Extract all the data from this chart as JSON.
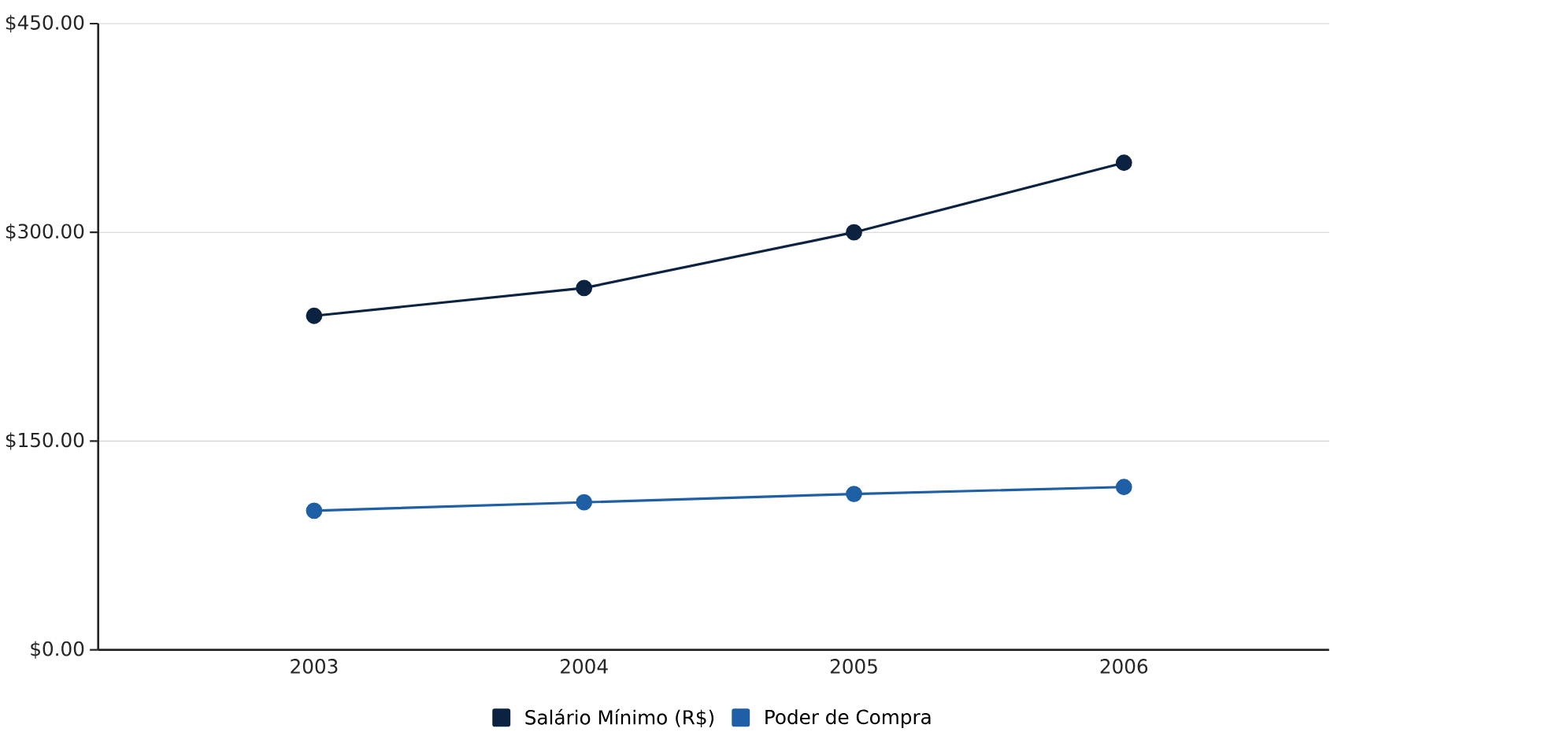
{
  "chart_data": {
    "type": "line",
    "categories": [
      "2003",
      "2004",
      "2005",
      "2006"
    ],
    "series": [
      {
        "name": "Salário Mínimo (R$)",
        "color": "#0b2340",
        "values": [
          240,
          260,
          300,
          350
        ]
      },
      {
        "name": "Poder de Compra",
        "color": "#1f5fa6",
        "values": [
          100,
          106,
          112,
          117
        ]
      }
    ],
    "ylim": [
      0,
      450
    ],
    "yticks": [
      {
        "value": 0,
        "label": "$0.00"
      },
      {
        "value": 150,
        "label": "$150.00"
      },
      {
        "value": 300,
        "label": "$300.00"
      },
      {
        "value": 450,
        "label": "$450.00"
      }
    ],
    "grid": "y",
    "legend": "bottom",
    "marker": "circle",
    "line_style": "solid"
  }
}
